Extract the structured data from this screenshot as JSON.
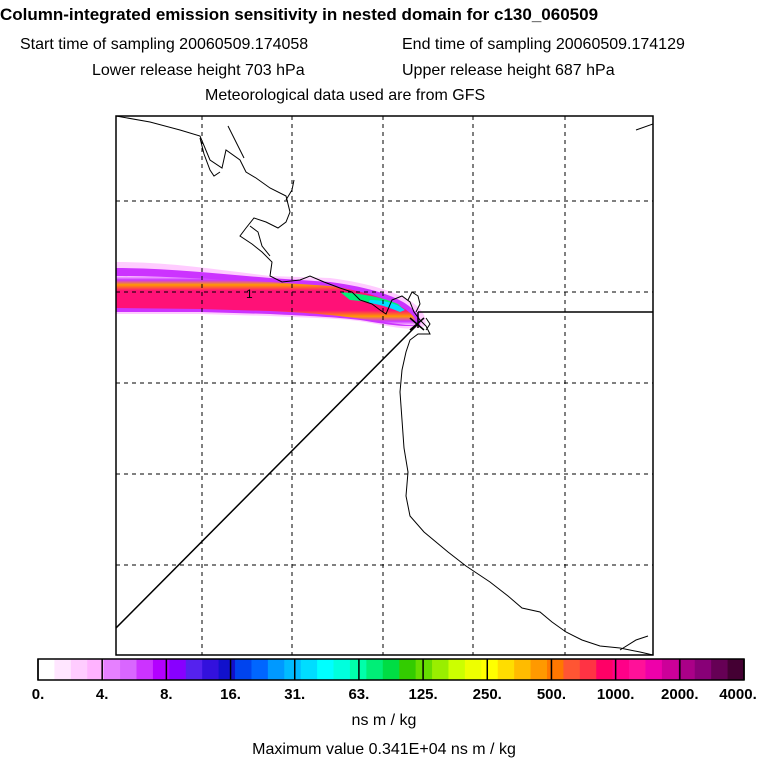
{
  "header": {
    "title": "Column-integrated emission sensitivity in nested domain for c130_060509",
    "start_label": "Start time of sampling 20060509.174058",
    "end_label": "End time of sampling 20060509.174129",
    "lower_label": "Lower release height  703 hPa",
    "upper_label": "Upper release height  687 hPa",
    "met_label": "Meteorological data used are from GFS"
  },
  "chart_data": {
    "type": "heatmap",
    "title": "Column-integrated emission sensitivity in nested domain for c130_060509",
    "colorbar": {
      "tick_labels": [
        "0.",
        "4.",
        "8.",
        "16.",
        "31.",
        "63.",
        "125.",
        "250.",
        "500.",
        "1000.",
        "2000.",
        "4000."
      ],
      "unit": "ns m / kg",
      "colors": [
        "#ffffff",
        "#ffe6ff",
        "#ffccff",
        "#ffb3ff",
        "#e680ff",
        "#d966ff",
        "#cc33ff",
        "#b300ff",
        "#8800ff",
        "#5522ee",
        "#3311dd",
        "#1111cc",
        "#0044ee",
        "#0066ff",
        "#0099ff",
        "#00bbff",
        "#00ddff",
        "#00ffff",
        "#00ffdd",
        "#00ffaa",
        "#00ee77",
        "#00dd44",
        "#33cc00",
        "#66dd00",
        "#99ee00",
        "#ccff00",
        "#eeff00",
        "#ffff00",
        "#ffdd00",
        "#ffbb00",
        "#ff9900",
        "#ff7700",
        "#ff5533",
        "#ff3344",
        "#ff0066",
        "#ff0088",
        "#ff1199",
        "#ee00aa",
        "#cc0099",
        "#aa0088",
        "#880077",
        "#660055",
        "#440033"
      ]
    },
    "grid": true,
    "max_label": "Maximum value  0.341E+04 ns m / kg"
  }
}
